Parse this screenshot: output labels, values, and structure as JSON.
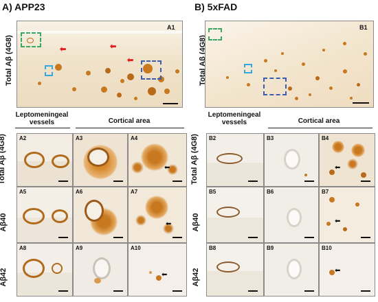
{
  "panels": {
    "left_title": "A) APP23",
    "right_title": "B) 5xFAD"
  },
  "overview": {
    "left_label": "A1",
    "right_label": "B1",
    "row_label": "Total Aβ (4G8)"
  },
  "column_headers": {
    "vessels": "Leptomeningeal vessels",
    "cortical": "Cortical area"
  },
  "row_labels": [
    "Total Aβ (4G8)",
    "Aβ40",
    "Aβ42"
  ],
  "left_tiles": [
    "A2",
    "A3",
    "A4",
    "A5",
    "A6",
    "A7",
    "A8",
    "A9",
    "A10"
  ],
  "right_tiles": [
    "B2",
    "B3",
    "B4",
    "B5",
    "B6",
    "B7",
    "B8",
    "B9",
    "B10"
  ],
  "colors": {
    "stain": "#c8781e",
    "dark_stain": "#8b4a10",
    "green_box": "#3aa860",
    "cyan_box": "#35a8e0",
    "blue_box": "#3b5bb0",
    "red_arrow": "#e02020"
  }
}
